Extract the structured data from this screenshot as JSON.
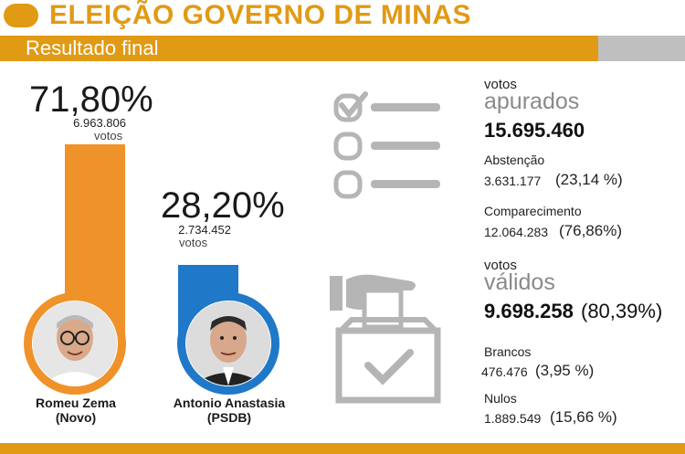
{
  "header": {
    "title": "ELEIÇÃO GOVERNO DE MINAS",
    "subtitle": "Resultado final"
  },
  "colors": {
    "accent": "#e09a14",
    "zema": "#f0922a",
    "anastasia": "#1f78c8",
    "gray": "#bfbfbf"
  },
  "chart_data": {
    "type": "bar",
    "categories": [
      "Romeu Zema (Novo)",
      "Antonio Anastasia (PSDB)"
    ],
    "values": [
      71.8,
      28.2
    ],
    "series": [
      {
        "values": [
          71.8,
          28.2
        ]
      }
    ],
    "value_labels": [
      "71,80%",
      "28,20%"
    ],
    "votes": [
      "6.963.806",
      "2.734.452"
    ],
    "votes_label": "votos",
    "candidates": [
      {
        "name": "Romeu Zema",
        "party": "(Novo)"
      },
      {
        "name": "Antonio Anastasia",
        "party": "(PSDB)"
      }
    ],
    "ylim": [
      0,
      100
    ]
  },
  "stats": {
    "apurados": {
      "small": "votos",
      "big": "apurados",
      "value": "15.695.460"
    },
    "abstencao": {
      "label": "Abstenção",
      "value": "3.631.177",
      "pct": "(23,14 %)"
    },
    "comparecimento": {
      "label": "Comparecimento",
      "value": "12.064.283",
      "pct": "(76,86%)"
    },
    "validos": {
      "small": "votos",
      "big": "válidos",
      "value": "9.698.258",
      "pct": "(80,39%)"
    },
    "brancos": {
      "label": "Brancos",
      "value": "476.476",
      "pct": "(3,95 %)"
    },
    "nulos": {
      "label": "Nulos",
      "value": "1.889.549",
      "pct": "(15,66 %)"
    }
  }
}
